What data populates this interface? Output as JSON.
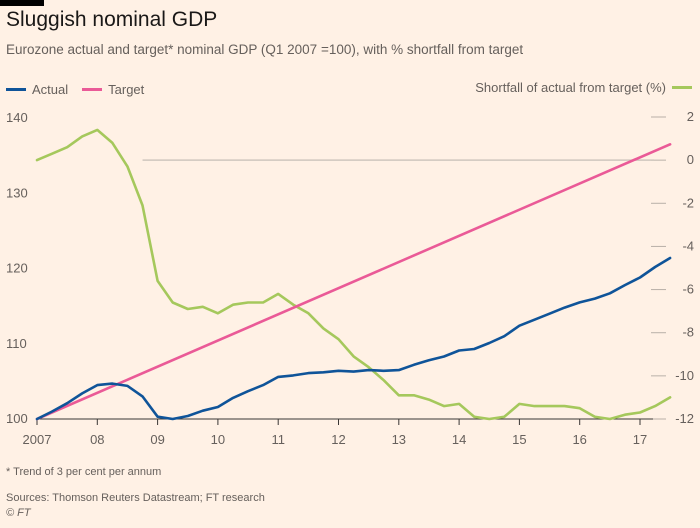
{
  "header": {
    "title": "Sluggish nominal GDP",
    "subtitle": "Eurozone actual and target* nominal GDP (Q1 2007 =100), with % shortfall from target"
  },
  "legend": {
    "actual": "Actual",
    "target": "Target",
    "shortfall": "Shortfall of actual from target (%)"
  },
  "footer": {
    "footnote": "* Trend of 3 per cent per annum",
    "source": "Sources: Thomson Reuters Datastream; FT research",
    "copyright": "© FT"
  },
  "colors": {
    "background": "#fff1e5",
    "actual": "#0f5499",
    "target": "#ea5a97",
    "shortfall": "#a5c85c",
    "zero_line": "#cfc7be",
    "text": "#66605c"
  },
  "chart_data": {
    "type": "line",
    "left_axis": {
      "range": [
        100,
        140
      ],
      "ticks": [
        100,
        110,
        120,
        130,
        140
      ]
    },
    "right_axis": {
      "range": [
        -12,
        2
      ],
      "ticks": [
        2,
        0,
        -2,
        -4,
        -6,
        -8,
        -10,
        -12
      ]
    },
    "x_range": [
      2007,
      2017.6
    ],
    "x_ticks": [
      {
        "value": 2007,
        "label": "2007"
      },
      {
        "value": 2008,
        "label": "08"
      },
      {
        "value": 2009,
        "label": "09"
      },
      {
        "value": 2010,
        "label": "10"
      },
      {
        "value": 2011,
        "label": "11"
      },
      {
        "value": 2012,
        "label": "12"
      },
      {
        "value": 2013,
        "label": "13"
      },
      {
        "value": 2014,
        "label": "14"
      },
      {
        "value": 2015,
        "label": "15"
      },
      {
        "value": 2016,
        "label": "16"
      },
      {
        "value": 2017,
        "label": "17"
      }
    ],
    "series": [
      {
        "name": "Actual",
        "axis": "left",
        "x": [
          2007.0,
          2007.25,
          2007.5,
          2007.75,
          2008.0,
          2008.25,
          2008.5,
          2008.75,
          2009.0,
          2009.25,
          2009.5,
          2009.75,
          2010.0,
          2010.25,
          2010.5,
          2010.75,
          2011.0,
          2011.25,
          2011.5,
          2011.75,
          2012.0,
          2012.25,
          2012.5,
          2012.75,
          2013.0,
          2013.25,
          2013.5,
          2013.75,
          2014.0,
          2014.25,
          2014.5,
          2014.75,
          2015.0,
          2015.25,
          2015.5,
          2015.75,
          2016.0,
          2016.25,
          2016.5,
          2016.75,
          2017.0,
          2017.25,
          2017.5
        ],
        "values": [
          100.0,
          101.0,
          102.1,
          103.4,
          104.5,
          104.7,
          104.4,
          103.0,
          100.3,
          100.0,
          100.4,
          101.1,
          101.6,
          102.8,
          103.7,
          104.5,
          105.6,
          105.8,
          106.1,
          106.2,
          106.4,
          106.3,
          106.5,
          106.4,
          106.5,
          107.2,
          107.8,
          108.3,
          109.1,
          109.3,
          110.1,
          111.0,
          112.4,
          113.2,
          114.0,
          114.8,
          115.5,
          116.0,
          116.7,
          117.8,
          118.8,
          120.2,
          121.4
        ]
      },
      {
        "name": "Target",
        "axis": "left",
        "x": [
          2007.0,
          2017.5
        ],
        "values": [
          100.0,
          136.5
        ]
      },
      {
        "name": "Shortfall of actual from target (%)",
        "axis": "right",
        "x": [
          2007.0,
          2007.25,
          2007.5,
          2007.75,
          2008.0,
          2008.25,
          2008.5,
          2008.75,
          2009.0,
          2009.25,
          2009.5,
          2009.75,
          2010.0,
          2010.25,
          2010.5,
          2010.75,
          2011.0,
          2011.25,
          2011.5,
          2011.75,
          2012.0,
          2012.25,
          2012.5,
          2012.75,
          2013.0,
          2013.25,
          2013.5,
          2013.75,
          2014.0,
          2014.25,
          2014.5,
          2014.75,
          2015.0,
          2015.25,
          2015.5,
          2015.75,
          2016.0,
          2016.25,
          2016.5,
          2016.75,
          2017.0,
          2017.25,
          2017.5
        ],
        "values": [
          0.0,
          0.3,
          0.6,
          1.1,
          1.4,
          0.8,
          -0.3,
          -2.1,
          -5.6,
          -6.6,
          -6.9,
          -6.8,
          -7.1,
          -6.7,
          -6.6,
          -6.6,
          -6.2,
          -6.7,
          -7.1,
          -7.8,
          -8.3,
          -9.1,
          -9.6,
          -10.2,
          -10.9,
          -10.9,
          -11.1,
          -11.4,
          -11.3,
          -11.9,
          -12.0,
          -11.9,
          -11.3,
          -11.4,
          -11.4,
          -11.4,
          -11.5,
          -11.9,
          -12.0,
          -11.8,
          -11.7,
          -11.4,
          -11.0
        ]
      }
    ],
    "zero_line_start_x": 2008.75,
    "grid": false,
    "legend_placement": "top"
  }
}
